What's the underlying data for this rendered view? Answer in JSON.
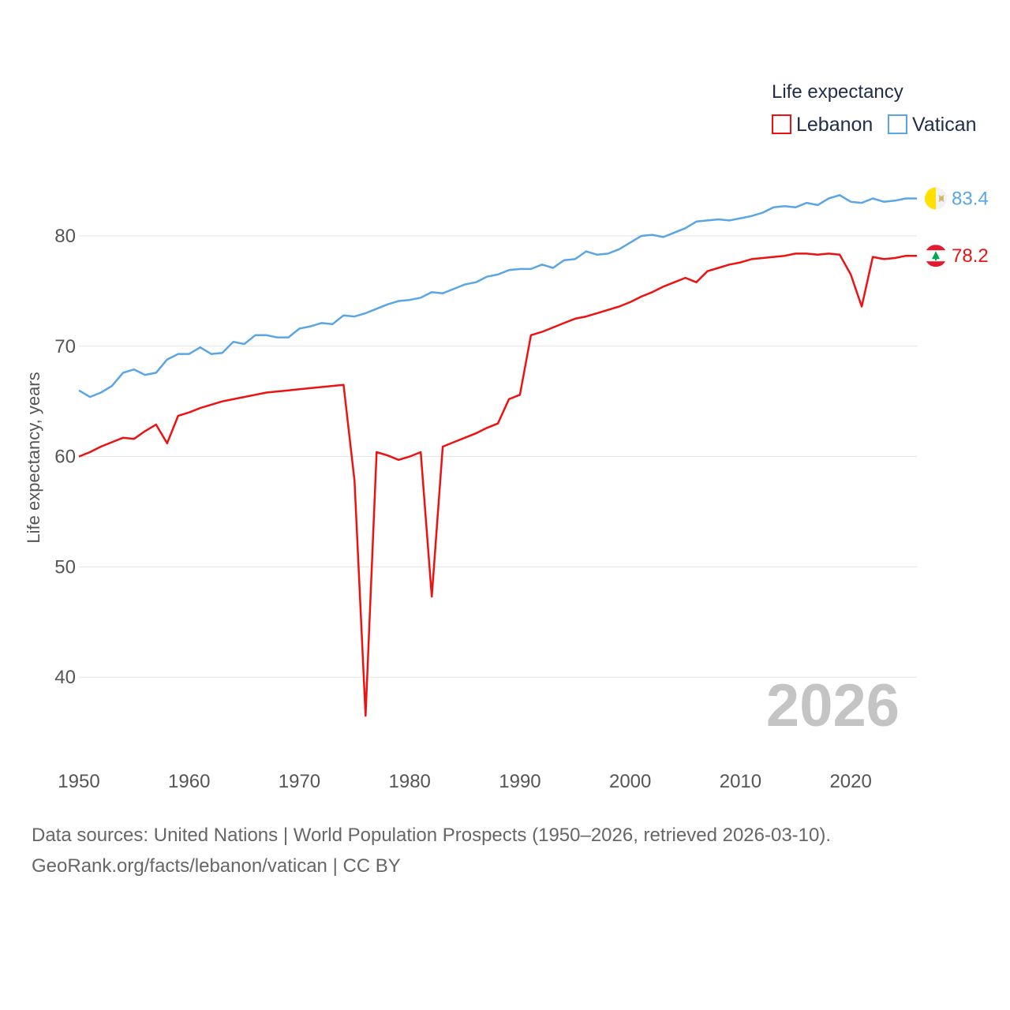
{
  "chart_data": {
    "type": "line",
    "title": "",
    "xlabel": "",
    "ylabel": "Life expectancy, years",
    "xlim": [
      1950,
      2026
    ],
    "ylim": [
      35,
      90
    ],
    "x_ticks": [
      1950,
      1960,
      1970,
      1980,
      1990,
      2000,
      2010,
      2020
    ],
    "y_ticks": [
      40,
      50,
      60,
      70,
      80
    ],
    "grid": true,
    "legend": {
      "title": "Life expectancy",
      "position": "top-right",
      "entries": [
        {
          "name": "Lebanon",
          "color": "#ee1111"
        },
        {
          "name": "Vatican",
          "color": "#5aa5e6"
        }
      ]
    },
    "year_watermark": "2026",
    "series": [
      {
        "name": "Lebanon",
        "color": "#ee1111",
        "end_label": "78.2",
        "points": [
          [
            1950,
            60.0
          ],
          [
            1951,
            60.4
          ],
          [
            1952,
            60.9
          ],
          [
            1953,
            61.3
          ],
          [
            1954,
            61.7
          ],
          [
            1955,
            61.6
          ],
          [
            1956,
            62.3
          ],
          [
            1957,
            62.9
          ],
          [
            1958,
            61.2
          ],
          [
            1959,
            63.7
          ],
          [
            1960,
            64.0
          ],
          [
            1961,
            64.4
          ],
          [
            1962,
            64.7
          ],
          [
            1963,
            65.0
          ],
          [
            1964,
            65.2
          ],
          [
            1965,
            65.4
          ],
          [
            1966,
            65.6
          ],
          [
            1967,
            65.8
          ],
          [
            1968,
            65.9
          ],
          [
            1969,
            66.0
          ],
          [
            1970,
            66.1
          ],
          [
            1971,
            66.2
          ],
          [
            1972,
            66.3
          ],
          [
            1973,
            66.4
          ],
          [
            1974,
            66.5
          ],
          [
            1975,
            57.8
          ],
          [
            1976,
            36.5
          ],
          [
            1977,
            60.4
          ],
          [
            1978,
            60.1
          ],
          [
            1979,
            59.7
          ],
          [
            1980,
            60.0
          ],
          [
            1981,
            60.4
          ],
          [
            1982,
            47.3
          ],
          [
            1983,
            60.9
          ],
          [
            1984,
            61.3
          ],
          [
            1985,
            61.7
          ],
          [
            1986,
            62.1
          ],
          [
            1987,
            62.6
          ],
          [
            1988,
            63.0
          ],
          [
            1989,
            65.2
          ],
          [
            1990,
            65.6
          ],
          [
            1991,
            71.0
          ],
          [
            1992,
            71.3
          ],
          [
            1993,
            71.7
          ],
          [
            1994,
            72.1
          ],
          [
            1995,
            72.5
          ],
          [
            1996,
            72.7
          ],
          [
            1997,
            73.0
          ],
          [
            1998,
            73.3
          ],
          [
            1999,
            73.6
          ],
          [
            2000,
            74.0
          ],
          [
            2001,
            74.5
          ],
          [
            2002,
            74.9
          ],
          [
            2003,
            75.4
          ],
          [
            2004,
            75.8
          ],
          [
            2005,
            76.2
          ],
          [
            2006,
            75.8
          ],
          [
            2007,
            76.8
          ],
          [
            2008,
            77.1
          ],
          [
            2009,
            77.4
          ],
          [
            2010,
            77.6
          ],
          [
            2011,
            77.9
          ],
          [
            2012,
            78.0
          ],
          [
            2013,
            78.1
          ],
          [
            2014,
            78.2
          ],
          [
            2015,
            78.4
          ],
          [
            2016,
            78.4
          ],
          [
            2017,
            78.3
          ],
          [
            2018,
            78.4
          ],
          [
            2019,
            78.3
          ],
          [
            2020,
            76.5
          ],
          [
            2021,
            73.6
          ],
          [
            2022,
            78.1
          ],
          [
            2023,
            77.9
          ],
          [
            2024,
            78.0
          ],
          [
            2025,
            78.2
          ],
          [
            2026,
            78.2
          ]
        ]
      },
      {
        "name": "Vatican",
        "color": "#5aa5e6",
        "end_label": "83.4",
        "points": [
          [
            1950,
            66.0
          ],
          [
            1951,
            65.4
          ],
          [
            1952,
            65.8
          ],
          [
            1953,
            66.4
          ],
          [
            1954,
            67.6
          ],
          [
            1955,
            67.9
          ],
          [
            1956,
            67.4
          ],
          [
            1957,
            67.6
          ],
          [
            1958,
            68.8
          ],
          [
            1959,
            69.3
          ],
          [
            1960,
            69.3
          ],
          [
            1961,
            69.9
          ],
          [
            1962,
            69.3
          ],
          [
            1963,
            69.4
          ],
          [
            1964,
            70.4
          ],
          [
            1965,
            70.2
          ],
          [
            1966,
            71.0
          ],
          [
            1967,
            71.0
          ],
          [
            1968,
            70.8
          ],
          [
            1969,
            70.8
          ],
          [
            1970,
            71.6
          ],
          [
            1971,
            71.8
          ],
          [
            1972,
            72.1
          ],
          [
            1973,
            72.0
          ],
          [
            1974,
            72.8
          ],
          [
            1975,
            72.7
          ],
          [
            1976,
            73.0
          ],
          [
            1977,
            73.4
          ],
          [
            1978,
            73.8
          ],
          [
            1979,
            74.1
          ],
          [
            1980,
            74.2
          ],
          [
            1981,
            74.4
          ],
          [
            1982,
            74.9
          ],
          [
            1983,
            74.8
          ],
          [
            1984,
            75.2
          ],
          [
            1985,
            75.6
          ],
          [
            1986,
            75.8
          ],
          [
            1987,
            76.3
          ],
          [
            1988,
            76.5
          ],
          [
            1989,
            76.9
          ],
          [
            1990,
            77.0
          ],
          [
            1991,
            77.0
          ],
          [
            1992,
            77.4
          ],
          [
            1993,
            77.1
          ],
          [
            1994,
            77.8
          ],
          [
            1995,
            77.9
          ],
          [
            1996,
            78.6
          ],
          [
            1997,
            78.3
          ],
          [
            1998,
            78.4
          ],
          [
            1999,
            78.8
          ],
          [
            2000,
            79.4
          ],
          [
            2001,
            80.0
          ],
          [
            2002,
            80.1
          ],
          [
            2003,
            79.9
          ],
          [
            2004,
            80.3
          ],
          [
            2005,
            80.7
          ],
          [
            2006,
            81.3
          ],
          [
            2007,
            81.4
          ],
          [
            2008,
            81.5
          ],
          [
            2009,
            81.4
          ],
          [
            2010,
            81.6
          ],
          [
            2011,
            81.8
          ],
          [
            2012,
            82.1
          ],
          [
            2013,
            82.6
          ],
          [
            2014,
            82.7
          ],
          [
            2015,
            82.6
          ],
          [
            2016,
            83.0
          ],
          [
            2017,
            82.8
          ],
          [
            2018,
            83.4
          ],
          [
            2019,
            83.7
          ],
          [
            2020,
            83.1
          ],
          [
            2021,
            83.0
          ],
          [
            2022,
            83.4
          ],
          [
            2023,
            83.1
          ],
          [
            2024,
            83.2
          ],
          [
            2025,
            83.4
          ],
          [
            2026,
            83.4
          ]
        ]
      }
    ]
  },
  "icons": {
    "lebanon": "lebanon-flag-icon",
    "vatican": "vatican-flag-icon"
  },
  "footer": {
    "sources": "Data sources: United Nations | World Population Prospects (1950–2026, retrieved 2026-03-10).",
    "credit": "GeoRank.org/facts/lebanon/vatican | CC BY"
  }
}
